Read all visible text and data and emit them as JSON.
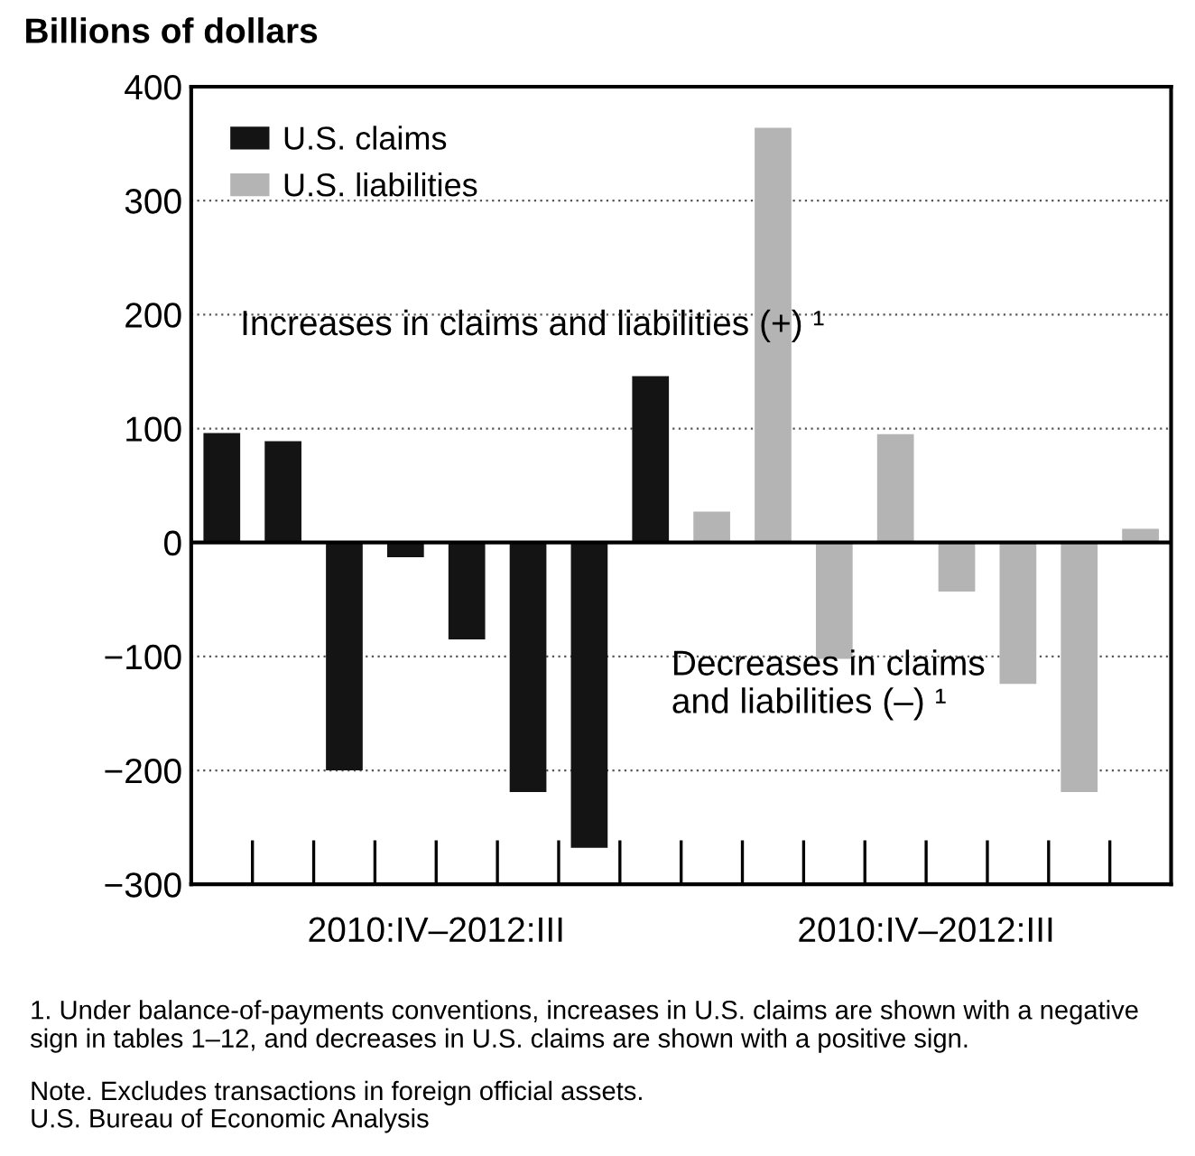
{
  "chart_data": {
    "type": "bar",
    "ylabel": "Billions of dollars",
    "categories": [
      null,
      null,
      null,
      null,
      null,
      null,
      null,
      null,
      null,
      null,
      null,
      null,
      null,
      null,
      null,
      null
    ],
    "series": [
      {
        "name": "U.S. claims",
        "color": "#141414",
        "values": [
          96,
          89,
          -200,
          -13,
          -85,
          -219,
          -268,
          146,
          null,
          null,
          null,
          null,
          null,
          null,
          null,
          null
        ]
      },
      {
        "name": "U.S. liabilities",
        "color": "#b4b4b4",
        "values": [
          null,
          null,
          null,
          null,
          null,
          null,
          null,
          null,
          27,
          364,
          -102,
          95,
          -43,
          -124,
          -219,
          12
        ]
      }
    ],
    "ylim": [
      -300,
      400
    ],
    "yticks": [
      -300,
      -200,
      -100,
      0,
      100,
      200,
      300,
      400
    ],
    "grid": "y",
    "legend": "top left",
    "annotations": [
      "2010:IV–2012:III",
      "2010:IV–2012:III",
      "Increases in claims and liabilities (+) ¹",
      "Decreases in claims\nand liabilities (–) ¹",
      "1. Under balance-of-payments conventions, increases in U.S. claims are shown with a negative sign in tables 1–12, and decreases in U.S. claims are shown with a positive sign.",
      "Note. Excludes transactions in foreign official assets.",
      "U.S. Bureau of Economic Analysis"
    ]
  }
}
